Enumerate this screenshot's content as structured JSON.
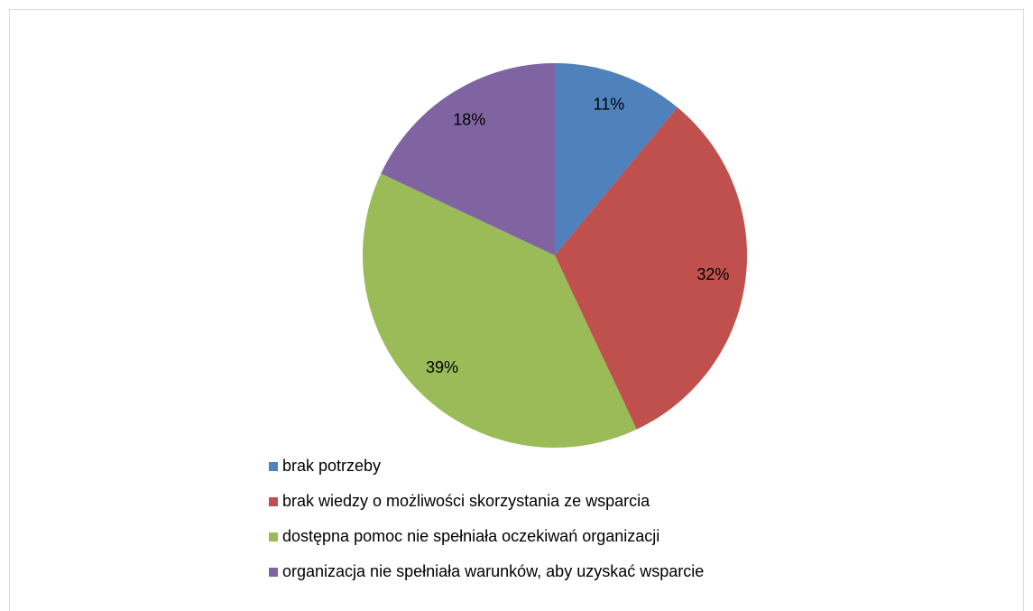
{
  "chart_data": {
    "type": "pie",
    "categories": [
      "brak potrzeby",
      "brak wiedzy o możliwości skorzystania ze wsparcia",
      "dostępna pomoc nie spełniała oczekiwań organizacji",
      "organizacja nie spełniała warunków, aby uzyskać wsparcie"
    ],
    "values": [
      11,
      32,
      39,
      18
    ],
    "value_labels": [
      "11%",
      "32%",
      "39%",
      "18%"
    ],
    "colors": [
      "#4f81bd",
      "#c0504d",
      "#9bbb59",
      "#8064a2"
    ],
    "legend": "bottom"
  }
}
